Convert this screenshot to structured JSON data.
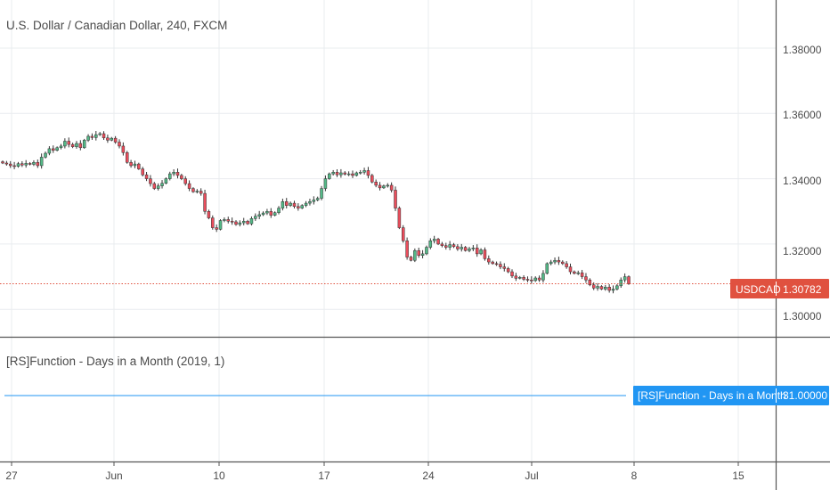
{
  "main_pane": {
    "title": "U.S. Dollar / Canadian Dollar, 240, FXCM",
    "y_axis_labels": [
      "1.38000",
      "1.36000",
      "1.34000",
      "1.32000",
      "1.30000"
    ],
    "last_price_label": {
      "symbol": "USDCAD",
      "value": "1.30782",
      "color": "#e0513f"
    }
  },
  "indicator_pane": {
    "title": "[RS]Function - Days in a Month (2019, 1)",
    "value_label": {
      "name": "[RS]Function - Days in a Month",
      "value": "31.00000",
      "color": "#2196f3"
    }
  },
  "x_axis": {
    "labels": [
      "27",
      "Jun",
      "10",
      "17",
      "24",
      "Jul",
      "8",
      "15"
    ]
  },
  "colors": {
    "up": "#53b987",
    "down": "#eb4d5c",
    "wick": "#333333",
    "grid": "#e9ecef",
    "price_line": "#e0513f",
    "indicator_line": "#2196f3"
  },
  "chart_data": [
    {
      "type": "candlestick",
      "title": "U.S. Dollar / Canadian Dollar, 240, FXCM",
      "x_ticks": [
        "27",
        "Jun",
        "10",
        "17",
        "24",
        "Jul",
        "8",
        "15"
      ],
      "ylim": [
        1.296,
        1.393
      ],
      "y_ticks": [
        1.3,
        1.32,
        1.34,
        1.36,
        1.38
      ],
      "last_value": 1.30782,
      "close_series": [
        1.3448,
        1.3445,
        1.344,
        1.3438,
        1.3446,
        1.3442,
        1.3447,
        1.3444,
        1.345,
        1.344,
        1.3466,
        1.3478,
        1.3492,
        1.3487,
        1.3495,
        1.35,
        1.3515,
        1.3505,
        1.3498,
        1.3508,
        1.3495,
        1.3518,
        1.353,
        1.3526,
        1.3535,
        1.3538,
        1.3525,
        1.3518,
        1.3524,
        1.3512,
        1.35,
        1.348,
        1.345,
        1.344,
        1.3445,
        1.343,
        1.3412,
        1.34,
        1.3385,
        1.337,
        1.3378,
        1.3386,
        1.34,
        1.3415,
        1.342,
        1.341,
        1.34,
        1.3385,
        1.337,
        1.336,
        1.3362,
        1.3355,
        1.33,
        1.328,
        1.325,
        1.3245,
        1.3272,
        1.3275,
        1.327,
        1.3268,
        1.326,
        1.3265,
        1.327,
        1.3262,
        1.3278,
        1.3285,
        1.329,
        1.3295,
        1.33,
        1.3288,
        1.3296,
        1.331,
        1.333,
        1.3318,
        1.3325,
        1.3315,
        1.331,
        1.3318,
        1.3325,
        1.333,
        1.3335,
        1.334,
        1.337,
        1.34,
        1.3415,
        1.342,
        1.3412,
        1.3418,
        1.3414,
        1.3415,
        1.341,
        1.3418,
        1.342,
        1.3425,
        1.341,
        1.339,
        1.338,
        1.3372,
        1.3378,
        1.338,
        1.3365,
        1.331,
        1.325,
        1.321,
        1.316,
        1.315,
        1.318,
        1.3165,
        1.317,
        1.319,
        1.321,
        1.3215,
        1.32,
        1.3195,
        1.319,
        1.3198,
        1.3192,
        1.3185,
        1.319,
        1.318,
        1.3185,
        1.3188,
        1.317,
        1.3182,
        1.3155,
        1.3145,
        1.314,
        1.3138,
        1.313,
        1.3125,
        1.3115,
        1.3102,
        1.3095,
        1.3098,
        1.3092,
        1.309,
        1.3088,
        1.3096,
        1.309,
        1.311,
        1.314,
        1.3145,
        1.315,
        1.3145,
        1.314,
        1.313,
        1.3115,
        1.311,
        1.3112,
        1.31,
        1.309,
        1.3075,
        1.3065,
        1.307,
        1.3062,
        1.3068,
        1.3058,
        1.3062,
        1.3072,
        1.309,
        1.31,
        1.3078
      ],
      "markers": [
        {
          "x_label": "Jun",
          "date": "2019-06-03"
        },
        {
          "x_label": "Jul",
          "date": "2019-07-01"
        }
      ]
    },
    {
      "type": "line",
      "title": "[RS]Function - Days in a Month (2019, 1)",
      "series": [
        {
          "name": "[RS]Function - Days in a Month",
          "values": [
            31.0
          ]
        }
      ],
      "last_value": 31.0
    }
  ]
}
